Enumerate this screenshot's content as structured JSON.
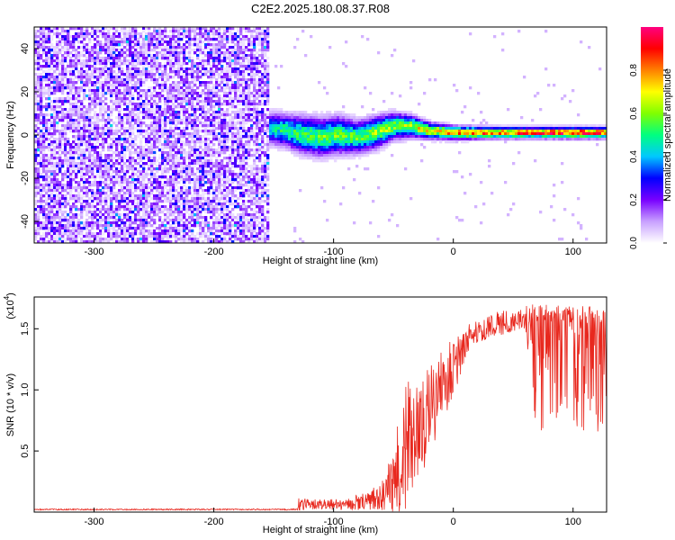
{
  "title": "C2E2.2025.180.08.37.R08",
  "chart_data": [
    {
      "type": "heatmap",
      "xlabel": "Height of straight line (km)",
      "ylabel": "Frequency (Hz)",
      "xlim": [
        -350,
        128
      ],
      "ylim": [
        -50,
        50
      ],
      "xticks": [
        -300,
        -200,
        -100,
        0,
        100
      ],
      "yticks": [
        -40,
        -20,
        0,
        20,
        40
      ],
      "colorbar": {
        "label": "Normalized spectral amplitude",
        "range": [
          0,
          1
        ],
        "ticks": [
          "0.0",
          "0.2",
          "0.4",
          "0.6",
          "0.8"
        ],
        "colors": [
          "#ffffff",
          "#c8a0ff",
          "#7800ff",
          "#0000ff",
          "#00c8ff",
          "#00ff80",
          "#80ff00",
          "#ffff00",
          "#ff8000",
          "#ff0000",
          "#ff0080"
        ]
      },
      "noise_region": {
        "x_from": -350,
        "x_to": -153,
        "level": 0.2
      },
      "ridge": [
        {
          "x": -152,
          "f": 3,
          "amp": 0.45,
          "width": 6
        },
        {
          "x": -140,
          "f": 2,
          "amp": 0.55,
          "width": 6
        },
        {
          "x": -125,
          "f": 0,
          "amp": 0.55,
          "width": 7
        },
        {
          "x": -110,
          "f": -1,
          "amp": 0.6,
          "width": 7
        },
        {
          "x": -95,
          "f": 0,
          "amp": 0.6,
          "width": 7
        },
        {
          "x": -80,
          "f": -1,
          "amp": 0.6,
          "width": 6
        },
        {
          "x": -65,
          "f": 1,
          "amp": 0.65,
          "width": 6
        },
        {
          "x": -50,
          "f": 4,
          "amp": 0.65,
          "width": 5
        },
        {
          "x": -35,
          "f": 4,
          "amp": 0.7,
          "width": 4
        },
        {
          "x": -20,
          "f": 2,
          "amp": 0.75,
          "width": 3
        },
        {
          "x": 0,
          "f": 1,
          "amp": 0.85,
          "width": 2.5
        },
        {
          "x": 40,
          "f": 1,
          "amp": 0.9,
          "width": 2
        },
        {
          "x": 80,
          "f": 1,
          "amp": 0.95,
          "width": 2
        },
        {
          "x": 100,
          "f": 1,
          "amp": 1.0,
          "width": 2
        },
        {
          "x": 128,
          "f": 1,
          "amp": 0.95,
          "width": 2
        }
      ]
    },
    {
      "type": "line",
      "xlabel": "Height of straight line (km)",
      "ylabel": "SNR (10 * v/v)",
      "scale_label": "(x10",
      "scale_exponent": "4",
      "xlim": [
        -350,
        128
      ],
      "ylim": [
        0,
        1.76
      ],
      "xticks": [
        -300,
        -200,
        -100,
        0,
        100
      ],
      "yticks": [
        0.5,
        1.0,
        1.5
      ],
      "ytick_labels": [
        "0.5",
        "1.0",
        "1.5"
      ],
      "color": "#e8281e",
      "envelope": {
        "x": [
          -350,
          -200,
          -130,
          -129,
          -110,
          -90,
          -70,
          -60,
          -50,
          -40,
          -30,
          -20,
          -10,
          0,
          10,
          20,
          30,
          40,
          50,
          60,
          70,
          80,
          100,
          128
        ],
        "base": [
          0.02,
          0.02,
          0.02,
          0.05,
          0.05,
          0.05,
          0.07,
          0.1,
          0.15,
          0.35,
          0.5,
          0.7,
          0.95,
          1.1,
          1.35,
          1.45,
          1.5,
          1.52,
          1.53,
          1.55,
          1.56,
          1.55,
          1.54,
          1.55
        ],
        "amp": [
          0.01,
          0.01,
          0.01,
          0.1,
          0.08,
          0.1,
          0.15,
          0.25,
          0.6,
          1.1,
          0.9,
          0.8,
          0.6,
          0.5,
          0.25,
          0.22,
          0.2,
          0.2,
          0.18,
          0.18,
          0.9,
          0.9,
          0.9,
          0.9
        ]
      }
    }
  ]
}
